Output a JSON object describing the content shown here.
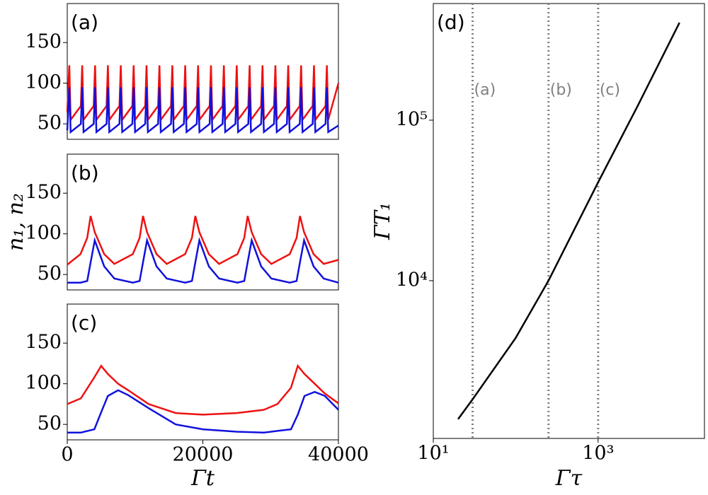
{
  "chart_data": [
    {
      "type": "line",
      "label": "(a)",
      "xlim": [
        0,
        40000
      ],
      "ylim": [
        31,
        198
      ],
      "yticks": [
        50,
        100,
        150
      ],
      "x": [
        0,
        300,
        500,
        2000,
        2200,
        2400,
        3900,
        4100,
        4300,
        5800,
        6000,
        6200,
        7700,
        7900,
        8100,
        9600,
        9800,
        10000,
        11500,
        11700,
        11900,
        13400,
        13600,
        13800,
        15300,
        15500,
        15700,
        17200,
        17400,
        17600,
        19100,
        19300,
        19500,
        21000,
        21200,
        21400,
        22900,
        23100,
        23300,
        24800,
        25000,
        25200,
        26700,
        26900,
        27100,
        28600,
        28800,
        29000,
        30500,
        30700,
        30900,
        32400,
        32600,
        32800,
        34300,
        34500,
        34700,
        36200,
        36400,
        36600,
        38100,
        38300,
        38500,
        40000
      ],
      "series": [
        {
          "name": "n1",
          "color": "#ee1111",
          "values": [
            65,
            122,
            55,
            72,
            122,
            55,
            72,
            122,
            55,
            72,
            122,
            55,
            72,
            122,
            55,
            72,
            122,
            55,
            72,
            122,
            55,
            72,
            122,
            55,
            72,
            122,
            55,
            72,
            122,
            55,
            72,
            122,
            55,
            72,
            122,
            55,
            72,
            122,
            55,
            72,
            122,
            55,
            72,
            122,
            55,
            72,
            122,
            55,
            72,
            122,
            55,
            72,
            122,
            55,
            72,
            122,
            55,
            72,
            122,
            55,
            72,
            122,
            55,
            100
          ]
        },
        {
          "name": "n2",
          "color": "#1111dd",
          "values": [
            42,
            95,
            40,
            50,
            95,
            40,
            50,
            95,
            40,
            50,
            95,
            40,
            50,
            95,
            40,
            50,
            95,
            40,
            50,
            95,
            40,
            50,
            95,
            40,
            50,
            95,
            40,
            50,
            95,
            40,
            50,
            95,
            40,
            50,
            95,
            40,
            50,
            95,
            40,
            50,
            95,
            40,
            50,
            95,
            40,
            50,
            95,
            40,
            50,
            95,
            40,
            50,
            95,
            40,
            50,
            95,
            40,
            50,
            95,
            40,
            50,
            95,
            40,
            48
          ]
        }
      ]
    },
    {
      "type": "line",
      "label": "(b)",
      "ylabel": "n₁, n₂",
      "xlim": [
        0,
        40000
      ],
      "ylim": [
        31,
        198
      ],
      "yticks": [
        50,
        100,
        150
      ],
      "x": [
        0,
        1950,
        2950,
        3450,
        4050,
        5450,
        6950,
        9670,
        10670,
        11170,
        11770,
        13170,
        14670,
        17390,
        18390,
        18890,
        19490,
        20890,
        22390,
        25110,
        26110,
        26610,
        27210,
        28610,
        30110,
        32830,
        33830,
        34330,
        34930,
        36330,
        37830,
        40000
      ],
      "series": [
        {
          "name": "n1",
          "color": "#ee1111",
          "values": [
            62,
            75,
            95,
            122,
            102,
            75,
            63,
            75,
            95,
            122,
            102,
            75,
            63,
            75,
            95,
            122,
            102,
            75,
            63,
            75,
            95,
            122,
            102,
            75,
            63,
            75,
            95,
            122,
            102,
            75,
            63,
            68
          ]
        },
        {
          "name": "n2",
          "color": "#1111dd",
          "values": [
            40,
            40,
            42,
            65,
            92,
            60,
            45,
            40,
            42,
            65,
            92,
            60,
            45,
            40,
            42,
            65,
            92,
            60,
            45,
            40,
            42,
            65,
            92,
            60,
            45,
            40,
            42,
            65,
            92,
            60,
            45,
            40
          ]
        }
      ]
    },
    {
      "type": "line",
      "label": "(c)",
      "xlabel": "Γt",
      "xlim": [
        0,
        40000
      ],
      "ylim": [
        31,
        198
      ],
      "yticks": [
        50,
        100,
        150
      ],
      "xticks": [
        0,
        20000,
        40000
      ],
      "x": [
        0,
        2000,
        4000,
        5000,
        6000,
        7500,
        9000,
        12000,
        16000,
        20000,
        25000,
        29000,
        31000,
        33000,
        34000,
        35000,
        36500,
        38000,
        40000
      ],
      "series": [
        {
          "name": "n1",
          "color": "#ee1111",
          "values": [
            75,
            82,
            108,
            122,
            112,
            100,
            92,
            75,
            64,
            62,
            64,
            68,
            75,
            95,
            122,
            112,
            100,
            88,
            76
          ]
        },
        {
          "name": "n2",
          "color": "#1111dd",
          "values": [
            40,
            40,
            44,
            65,
            85,
            92,
            86,
            70,
            50,
            44,
            41,
            40,
            42,
            44,
            62,
            85,
            90,
            85,
            68
          ]
        }
      ]
    },
    {
      "type": "line",
      "label": "(d)",
      "xlabel": "Γτ",
      "ylabel": "ΓT₁",
      "xlog": true,
      "ylog": true,
      "xlim": [
        10,
        19500
      ],
      "ylim": [
        1040,
        533000
      ],
      "xticks": [
        {
          "value": 10,
          "label": "10¹"
        },
        {
          "value": 1000,
          "label": "10³"
        }
      ],
      "yticks": [
        {
          "value": 10000,
          "label": "10⁴"
        },
        {
          "value": 100000,
          "label": "10⁵"
        }
      ],
      "x": [
        20,
        30,
        100,
        250,
        1000,
        3000,
        9700
      ],
      "series": [
        {
          "name": "T1",
          "color": "#000000",
          "values": [
            1370,
            1820,
            4400,
            10000,
            41000,
            122000,
            405000
          ]
        }
      ],
      "vlines": [
        {
          "x": 30,
          "label": "(a)"
        },
        {
          "x": 250,
          "label": "(b)"
        },
        {
          "x": 1000,
          "label": "(c)"
        }
      ],
      "vline_color": "#808080"
    }
  ]
}
